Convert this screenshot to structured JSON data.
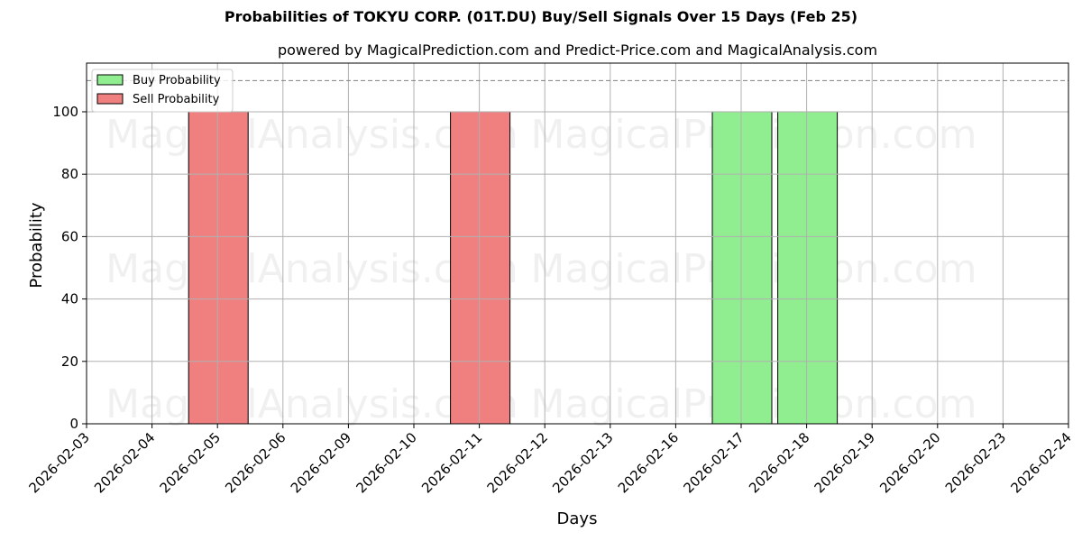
{
  "chart_data": {
    "type": "bar",
    "title": "Probabilities of TOKYU CORP. (01T.DU) Buy/Sell Signals Over 15 Days (Feb 25)",
    "subtitle": "powered by MagicalPrediction.com and Predict-Price.com and MagicalAnalysis.com",
    "xlabel": "Days",
    "ylabel": "Probability",
    "ylim": [
      0,
      115.6
    ],
    "yticks": [
      0,
      20,
      40,
      60,
      80,
      100
    ],
    "grid": true,
    "legend_position": "upper left",
    "reference_line": {
      "y": 110,
      "style": "dashed",
      "color": "#808080"
    },
    "categories": [
      "2026-02-03",
      "2026-02-04",
      "2026-02-05",
      "2026-02-06",
      "2026-02-09",
      "2026-02-10",
      "2026-02-11",
      "2026-02-12",
      "2026-02-13",
      "2026-02-16",
      "2026-02-17",
      "2026-02-18",
      "2026-02-19",
      "2026-02-20",
      "2026-02-23",
      "2026-02-24"
    ],
    "series": [
      {
        "name": "Buy Probability",
        "color": "#90ee90",
        "values": [
          0,
          0,
          0,
          0,
          0,
          0,
          0,
          0,
          0,
          0,
          100,
          100,
          0,
          0,
          0,
          0
        ]
      },
      {
        "name": "Sell Probability",
        "color": "#f08080",
        "values": [
          0,
          0,
          100,
          0,
          0,
          0,
          100,
          0,
          0,
          0,
          0,
          0,
          0,
          0,
          0,
          0
        ]
      }
    ],
    "watermarks": [
      "MagicalAnalysis.com",
      "MagicalPrediction.com"
    ]
  },
  "legend": {
    "buy_label": "Buy Probability",
    "sell_label": "Sell Probability"
  }
}
